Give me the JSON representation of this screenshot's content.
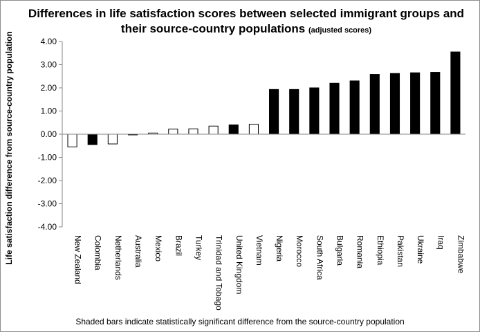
{
  "chart_data": {
    "type": "bar",
    "title": "Differences in life satisfaction scores between selected immigrant groups and their source-country populations",
    "subtitle": "(adjusted scores)",
    "xlabel": "",
    "ylabel": "Life satisfaction difference from source-country population",
    "ylim": [
      -4,
      4
    ],
    "yticks": [
      "-4.00",
      "-3.00",
      "-2.00",
      "-1.00",
      "0.00",
      "1.00",
      "2.00",
      "3.00",
      "4.00"
    ],
    "grid": false,
    "legend": "none",
    "footnote": "Shaded bars indicate statistically significant difference from the source-country population",
    "colors": {
      "significant": "#000000",
      "not_significant": "#ffffff",
      "outline": "#000000",
      "axis": "#868686"
    },
    "categories": [
      "New Zealand",
      "Colombia",
      "Netherlands",
      "Australia",
      "Mexico",
      "Brazil",
      "Turkey",
      "Trinidad and Tobago",
      "United Kingdom",
      "Vietnam",
      "Nigeria",
      "Morocco",
      "South Africa",
      "Bulgaria",
      "Romania",
      "Ethiopia",
      "Pakistan",
      "Ukraine",
      "Iraq",
      "Zimbabwe"
    ],
    "values": [
      -0.55,
      -0.45,
      -0.42,
      -0.03,
      0.05,
      0.22,
      0.23,
      0.35,
      0.4,
      0.43,
      1.93,
      1.93,
      2.0,
      2.2,
      2.3,
      2.58,
      2.62,
      2.65,
      2.67,
      3.55
    ],
    "significant": [
      false,
      true,
      false,
      false,
      false,
      false,
      false,
      false,
      true,
      false,
      true,
      true,
      true,
      true,
      true,
      true,
      true,
      true,
      true,
      true
    ]
  }
}
